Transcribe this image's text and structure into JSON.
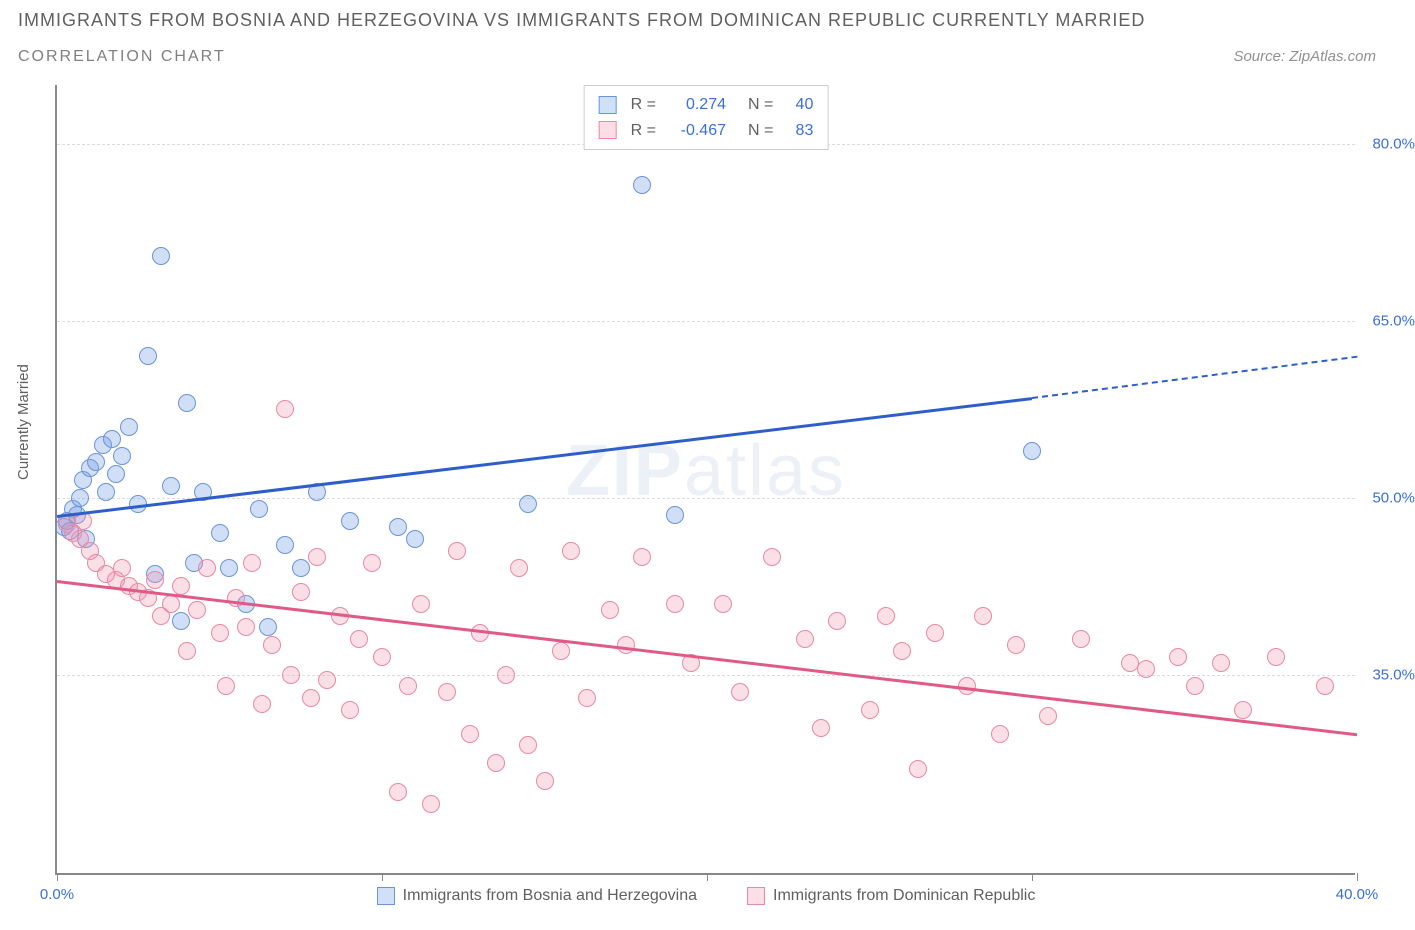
{
  "title": "IMMIGRANTS FROM BOSNIA AND HERZEGOVINA VS IMMIGRANTS FROM DOMINICAN REPUBLIC CURRENTLY MARRIED",
  "subtitle": "CORRELATION CHART",
  "source": "Source: ZipAtlas.com",
  "y_axis_label": "Currently Married",
  "watermark_bold": "ZIP",
  "watermark_rest": "atlas",
  "chart": {
    "type": "scatter",
    "xlim": [
      0,
      40
    ],
    "ylim": [
      18,
      85
    ],
    "xticks": [
      0,
      10,
      20,
      30,
      40
    ],
    "xtick_labels": [
      "0.0%",
      "",
      "",
      "",
      "40.0%"
    ],
    "yticks": [
      35,
      50,
      65,
      80
    ],
    "ytick_labels": [
      "35.0%",
      "50.0%",
      "65.0%",
      "80.0%"
    ],
    "grid_color": "#dcdcdc",
    "background_color": "#ffffff",
    "axis_color": "#888888"
  },
  "series": [
    {
      "id": "bosnia",
      "label": "Immigrants from Bosnia and Herzegovina",
      "color_fill": "rgba(120, 160, 230, 0.35)",
      "color_stroke": "#6a95d8",
      "swatch_fill": "#cfe0f7",
      "swatch_border": "#6a95d8",
      "r_value": "0.274",
      "n_value": "40",
      "trend": {
        "x1": 0,
        "y1": 48.5,
        "x2": 30,
        "y2": 58.5,
        "x_extend": 40,
        "y_extend": 62.0,
        "color": "#2e5ec9"
      },
      "points": [
        [
          0.2,
          47.5
        ],
        [
          0.3,
          48.0
        ],
        [
          0.4,
          47.2
        ],
        [
          0.5,
          49.0
        ],
        [
          0.6,
          48.5
        ],
        [
          0.7,
          50.0
        ],
        [
          0.8,
          51.5
        ],
        [
          1.0,
          52.5
        ],
        [
          1.2,
          53.0
        ],
        [
          1.4,
          54.5
        ],
        [
          1.5,
          50.5
        ],
        [
          1.7,
          55.0
        ],
        [
          1.8,
          52.0
        ],
        [
          2.0,
          53.5
        ],
        [
          2.2,
          56.0
        ],
        [
          2.5,
          49.5
        ],
        [
          2.8,
          62.0
        ],
        [
          3.0,
          43.5
        ],
        [
          3.2,
          70.5
        ],
        [
          3.5,
          51.0
        ],
        [
          3.8,
          39.5
        ],
        [
          4.0,
          58.0
        ],
        [
          4.2,
          44.5
        ],
        [
          4.5,
          50.5
        ],
        [
          5.0,
          47.0
        ],
        [
          5.3,
          44.0
        ],
        [
          5.8,
          41.0
        ],
        [
          6.2,
          49.0
        ],
        [
          6.5,
          39.0
        ],
        [
          7.0,
          46.0
        ],
        [
          7.5,
          44.0
        ],
        [
          8.0,
          50.5
        ],
        [
          9.0,
          48.0
        ],
        [
          10.5,
          47.5
        ],
        [
          11.0,
          46.5
        ],
        [
          14.5,
          49.5
        ],
        [
          18.0,
          76.5
        ],
        [
          19.0,
          48.5
        ],
        [
          30.0,
          54.0
        ],
        [
          0.9,
          46.5
        ]
      ]
    },
    {
      "id": "dominican",
      "label": "Immigrants from Dominican Republic",
      "color_fill": "rgba(240, 150, 175, 0.30)",
      "color_stroke": "#e889a6",
      "swatch_fill": "#fbdee6",
      "swatch_border": "#e889a6",
      "r_value": "-0.467",
      "n_value": "83",
      "trend": {
        "x1": 0,
        "y1": 43.0,
        "x2": 40,
        "y2": 30.0,
        "color": "#e05a87"
      },
      "points": [
        [
          0.3,
          47.8
        ],
        [
          0.5,
          47.0
        ],
        [
          0.7,
          46.5
        ],
        [
          0.8,
          48.0
        ],
        [
          1.0,
          45.5
        ],
        [
          1.2,
          44.5
        ],
        [
          1.5,
          43.5
        ],
        [
          1.8,
          43.0
        ],
        [
          2.0,
          44.0
        ],
        [
          2.2,
          42.5
        ],
        [
          2.5,
          42.0
        ],
        [
          2.8,
          41.5
        ],
        [
          3.0,
          43.0
        ],
        [
          3.2,
          40.0
        ],
        [
          3.5,
          41.0
        ],
        [
          3.8,
          42.5
        ],
        [
          4.0,
          37.0
        ],
        [
          4.3,
          40.5
        ],
        [
          4.6,
          44.0
        ],
        [
          5.0,
          38.5
        ],
        [
          5.2,
          34.0
        ],
        [
          5.5,
          41.5
        ],
        [
          5.8,
          39.0
        ],
        [
          6.0,
          44.5
        ],
        [
          6.3,
          32.5
        ],
        [
          6.6,
          37.5
        ],
        [
          7.0,
          57.5
        ],
        [
          7.2,
          35.0
        ],
        [
          7.5,
          42.0
        ],
        [
          7.8,
          33.0
        ],
        [
          8.0,
          45.0
        ],
        [
          8.3,
          34.5
        ],
        [
          8.7,
          40.0
        ],
        [
          9.0,
          32.0
        ],
        [
          9.3,
          38.0
        ],
        [
          9.7,
          44.5
        ],
        [
          10.0,
          36.5
        ],
        [
          10.5,
          25.0
        ],
        [
          10.8,
          34.0
        ],
        [
          11.2,
          41.0
        ],
        [
          11.5,
          24.0
        ],
        [
          12.0,
          33.5
        ],
        [
          12.3,
          45.5
        ],
        [
          12.7,
          30.0
        ],
        [
          13.0,
          38.5
        ],
        [
          13.5,
          27.5
        ],
        [
          13.8,
          35.0
        ],
        [
          14.2,
          44.0
        ],
        [
          14.5,
          29.0
        ],
        [
          15.0,
          26.0
        ],
        [
          15.5,
          37.0
        ],
        [
          15.8,
          45.5
        ],
        [
          16.3,
          33.0
        ],
        [
          17.0,
          40.5
        ],
        [
          17.5,
          37.5
        ],
        [
          18.0,
          45.0
        ],
        [
          19.0,
          41.0
        ],
        [
          19.5,
          36.0
        ],
        [
          20.5,
          41.0
        ],
        [
          21.0,
          33.5
        ],
        [
          22.0,
          45.0
        ],
        [
          23.0,
          38.0
        ],
        [
          23.5,
          30.5
        ],
        [
          24.0,
          39.5
        ],
        [
          25.0,
          32.0
        ],
        [
          25.5,
          40.0
        ],
        [
          26.0,
          37.0
        ],
        [
          26.5,
          27.0
        ],
        [
          27.0,
          38.5
        ],
        [
          28.0,
          34.0
        ],
        [
          28.5,
          40.0
        ],
        [
          29.0,
          30.0
        ],
        [
          29.5,
          37.5
        ],
        [
          30.5,
          31.5
        ],
        [
          31.5,
          38.0
        ],
        [
          33.0,
          36.0
        ],
        [
          33.5,
          35.5
        ],
        [
          34.5,
          36.5
        ],
        [
          35.0,
          34.0
        ],
        [
          35.8,
          36.0
        ],
        [
          36.5,
          32.0
        ],
        [
          37.5,
          36.5
        ],
        [
          39.0,
          34.0
        ]
      ]
    }
  ]
}
